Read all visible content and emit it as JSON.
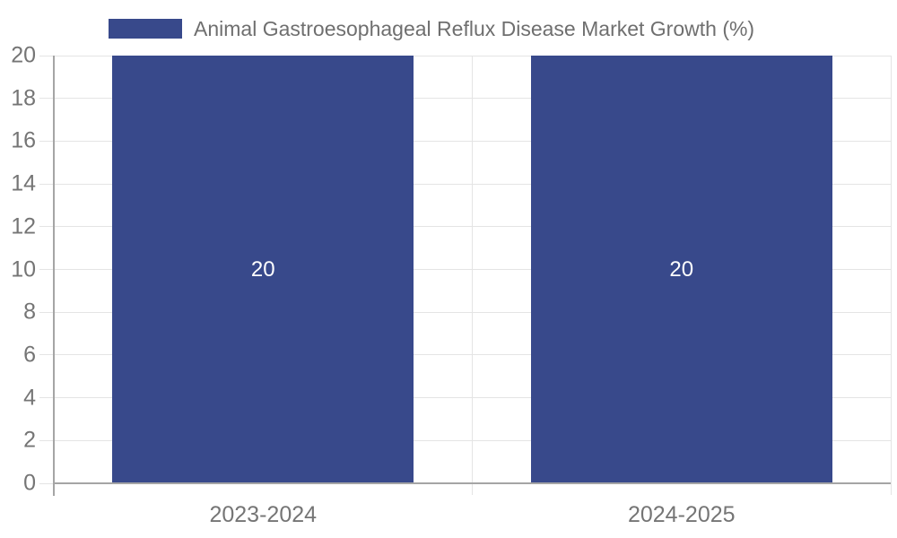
{
  "legend": {
    "label": "Animal Gastroesophageal Reflux Disease Market Growth (%)"
  },
  "chart_data": {
    "type": "bar",
    "title": "",
    "categories": [
      "2023-2024",
      "2024-2025"
    ],
    "series": [
      {
        "name": "Animal Gastroesophageal Reflux Disease Market Growth (%)",
        "values": [
          20,
          20
        ]
      }
    ],
    "bar_value_labels": [
      "20",
      "20"
    ],
    "xlabel": "",
    "ylabel": "",
    "ylim": [
      0,
      20
    ],
    "yticks": [
      0,
      2,
      4,
      6,
      8,
      10,
      12,
      14,
      16,
      18,
      20
    ],
    "grid": true,
    "legend_position": "top",
    "colors": {
      "bar": "#38498B",
      "legend_text": "#6f6f6f",
      "tick_text": "#757575",
      "bar_label_text": "#ffffff",
      "gridline": "#e4e4e4",
      "axis_line": "#a5a5a5"
    }
  }
}
